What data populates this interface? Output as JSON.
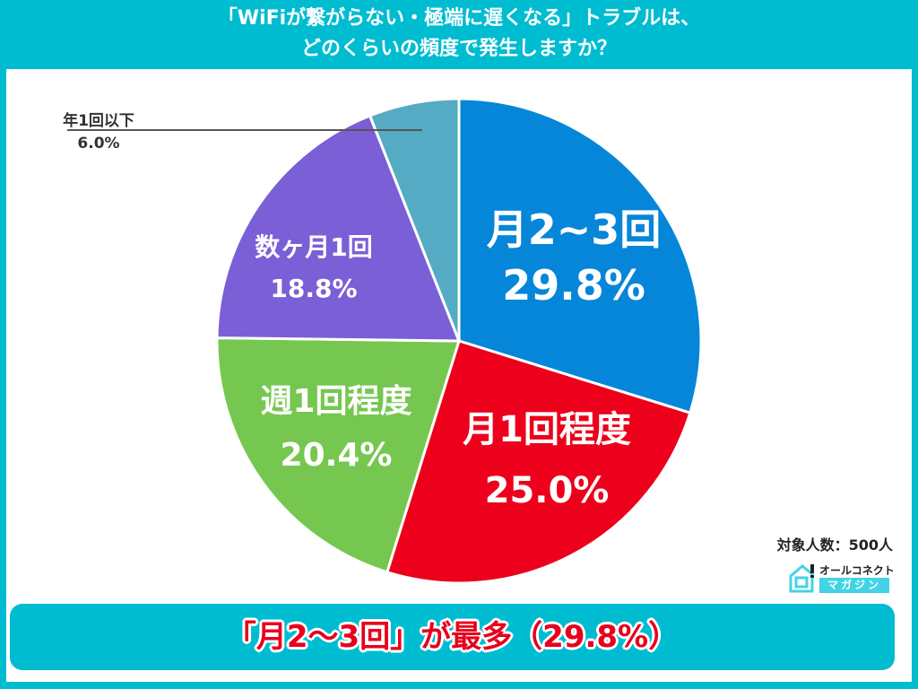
{
  "header": {
    "title_line1": "「WiFiが繋がらない・極端に遅くなる」トラブルは、",
    "title_line2": "どのくらいの頻度で発生しますか？"
  },
  "chart_data": {
    "type": "pie",
    "title": "「WiFiが繋がらない・極端に遅くなる」トラブルは、どのくらいの頻度で発生しますか？",
    "categories": [
      "月2~3回",
      "月1回程度",
      "週1回程度",
      "数ヶ月1回",
      "年1回以下"
    ],
    "values": [
      29.8,
      25.0,
      20.4,
      18.8,
      6.0
    ],
    "value_labels": [
      "29.8%",
      "25.0%",
      "20.4%",
      "18.8%",
      "6.0%"
    ],
    "colors": [
      "#0586d9",
      "#ec001b",
      "#76c74f",
      "#7b5fd6",
      "#55aac4"
    ],
    "start_angle_deg": 0,
    "direction": "clockwise",
    "unit": "%"
  },
  "labels": {
    "s0_name": "月2~3回",
    "s0_value": "29.8%",
    "s1_name": "月1回程度",
    "s1_value": "25.0%",
    "s2_name": "週1回程度",
    "s2_value": "20.4%",
    "s3_name": "数ヶ月1回",
    "s3_value": "18.8%",
    "s4_name": "年1回以下",
    "s4_value": "6.0%"
  },
  "footer": {
    "sample_size": "対象人数：500人",
    "logo_top": "オールコネクト",
    "logo_bottom": "マガジン",
    "conclusion": "「月2〜3回」が最多（29.8%）"
  },
  "colors": {
    "background": "#00bcd0",
    "panel": "#ffffff",
    "conclusion_text": "#e8001c"
  }
}
